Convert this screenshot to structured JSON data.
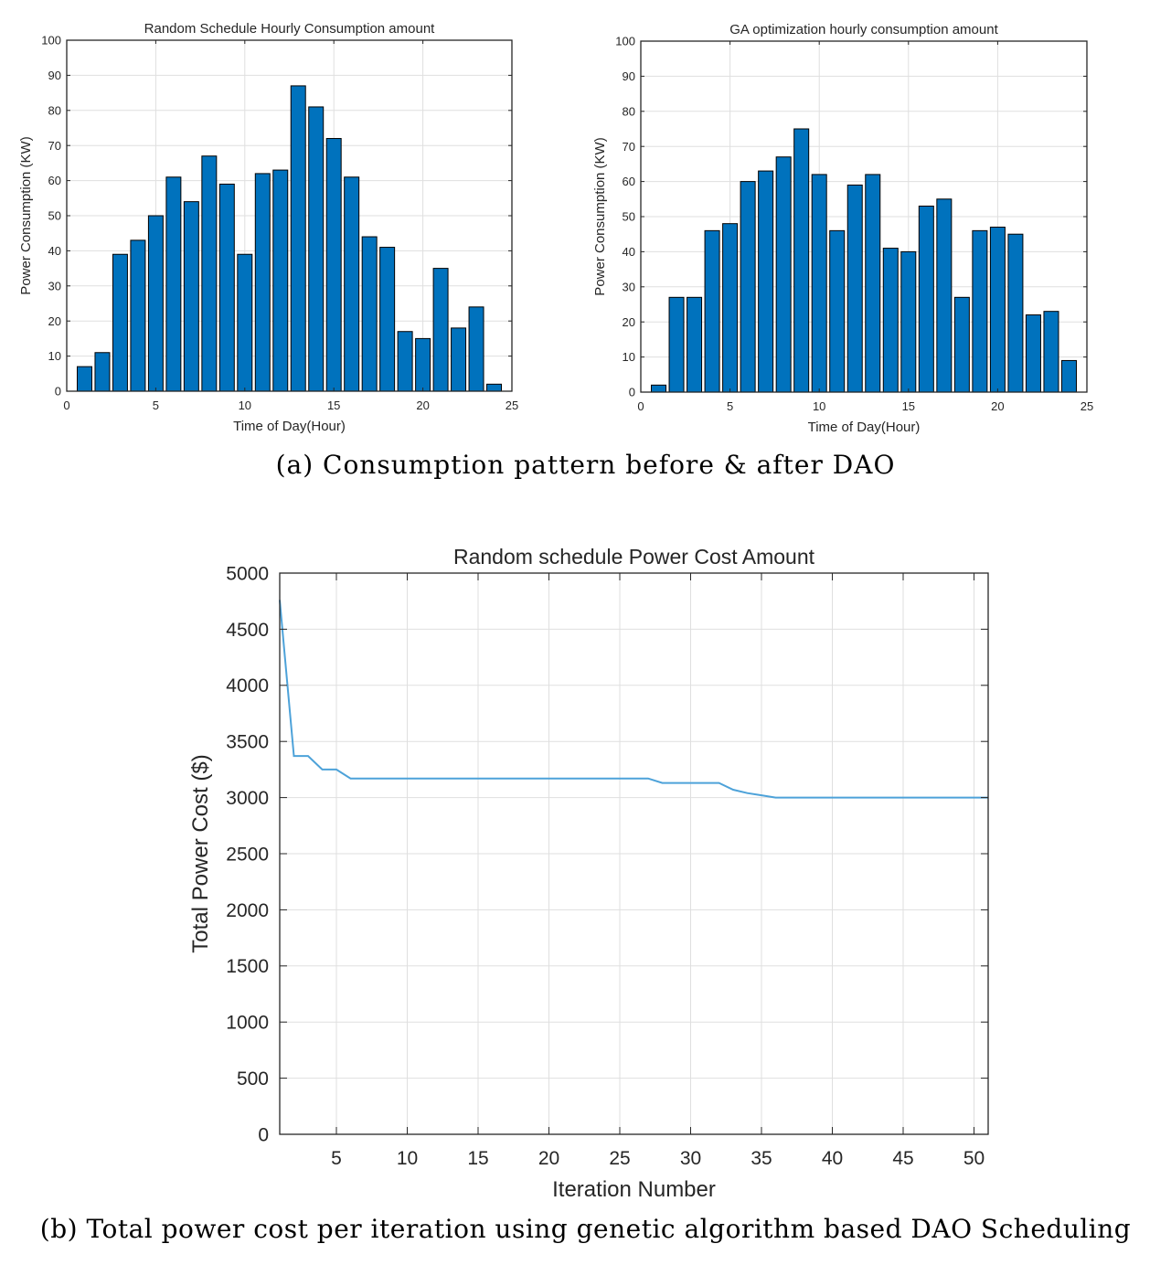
{
  "captions": {
    "a": "(a) Consumption pattern before & after DAO",
    "b": "(b) Total power cost per iteration using genetic algorithm based DAO Scheduling"
  },
  "colors": {
    "bar_fill": "#0072BD",
    "line": "#4DA2D9",
    "grid": "#DFDFDF",
    "axis": "#262626"
  },
  "chart_data": [
    {
      "type": "bar",
      "title": "Random Schedule Hourly Consumption amount",
      "xlabel": "Time of Day(Hour)",
      "ylabel": "Power Consumption (KW)",
      "xlim": [
        0,
        25
      ],
      "ylim": [
        0,
        100
      ],
      "xticks": [
        0,
        5,
        10,
        15,
        20,
        25
      ],
      "yticks": [
        0,
        10,
        20,
        30,
        40,
        50,
        60,
        70,
        80,
        90,
        100
      ],
      "grid": true,
      "categories": [
        1,
        2,
        3,
        4,
        5,
        6,
        7,
        8,
        9,
        10,
        11,
        12,
        13,
        14,
        15,
        16,
        17,
        18,
        19,
        20,
        21,
        22,
        23,
        24
      ],
      "values": [
        7,
        11,
        39,
        43,
        50,
        61,
        54,
        67,
        59,
        39,
        62,
        63,
        87,
        81,
        72,
        61,
        44,
        41,
        17,
        15,
        35,
        18,
        24,
        2
      ]
    },
    {
      "type": "bar",
      "title": "GA optimization hourly consumption amount",
      "xlabel": "Time of Day(Hour)",
      "ylabel": "Power Consumption (KW)",
      "xlim": [
        0,
        25
      ],
      "ylim": [
        0,
        100
      ],
      "xticks": [
        0,
        5,
        10,
        15,
        20,
        25
      ],
      "yticks": [
        0,
        10,
        20,
        30,
        40,
        50,
        60,
        70,
        80,
        90,
        100
      ],
      "grid": true,
      "categories": [
        1,
        2,
        3,
        4,
        5,
        6,
        7,
        8,
        9,
        10,
        11,
        12,
        13,
        14,
        15,
        16,
        17,
        18,
        19,
        20,
        21,
        22,
        23,
        24
      ],
      "values": [
        2,
        27,
        27,
        46,
        48,
        60,
        63,
        67,
        75,
        62,
        46,
        59,
        62,
        41,
        40,
        53,
        55,
        27,
        46,
        47,
        45,
        22,
        23,
        9
      ]
    },
    {
      "type": "line",
      "title": "Random schedule Power Cost Amount",
      "xlabel": "Iteration Number",
      "ylabel": "Total Power Cost ($)",
      "xlim": [
        1,
        51
      ],
      "ylim": [
        0,
        5000
      ],
      "xticks": [
        5,
        10,
        15,
        20,
        25,
        30,
        35,
        40,
        45,
        50
      ],
      "yticks": [
        0,
        500,
        1000,
        1500,
        2000,
        2500,
        3000,
        3500,
        4000,
        4500,
        5000
      ],
      "grid": true,
      "series": [
        {
          "x": [
            1,
            2,
            3,
            4,
            5,
            6,
            7,
            8,
            9,
            10,
            11,
            12,
            13,
            14,
            15,
            16,
            17,
            18,
            19,
            20,
            21,
            22,
            23,
            24,
            25,
            26,
            27,
            28,
            29,
            30,
            31,
            32,
            33,
            34,
            35,
            36,
            37,
            38,
            39,
            40,
            41,
            42,
            43,
            44,
            45,
            46,
            47,
            48,
            49,
            50,
            51
          ],
          "values": [
            4760,
            3370,
            3370,
            3250,
            3250,
            3170,
            3170,
            3170,
            3170,
            3170,
            3170,
            3170,
            3170,
            3170,
            3170,
            3170,
            3170,
            3170,
            3170,
            3170,
            3170,
            3170,
            3170,
            3170,
            3170,
            3170,
            3170,
            3130,
            3130,
            3130,
            3130,
            3130,
            3070,
            3040,
            3020,
            3000,
            3000,
            3000,
            3000,
            3000,
            3000,
            3000,
            3000,
            3000,
            3000,
            3000,
            3000,
            3000,
            3000,
            3000,
            3000
          ]
        }
      ]
    }
  ]
}
